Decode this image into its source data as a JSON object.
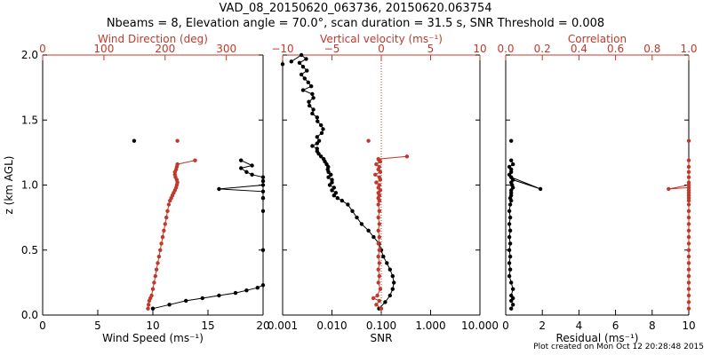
{
  "title": "VAD_08_20150620_063736, 20150620.063754",
  "subtitle": "Nbeams = 8, Elevation angle = 70.0°, scan duration = 31.5 s, SNR Threshold = 0.008",
  "footer": "Plot created on Mon Oct 12 20:28:48 2015",
  "colors": {
    "black": "#000000",
    "red": "#c0392b"
  },
  "y_axis": {
    "label": "z (km AGL)",
    "ticks": [
      "0.0",
      "0.5",
      "1.0",
      "1.5",
      "2.0"
    ],
    "tick_values": [
      0,
      0.5,
      1.0,
      1.5,
      2.0
    ]
  },
  "chart_data": [
    {
      "type": "line",
      "panel": "wind",
      "xlabel": "Wind Speed (ms⁻¹)",
      "xlim": [
        0,
        20
      ],
      "xticks": [
        0,
        5,
        10,
        15,
        20
      ],
      "xticklabels": [
        "0",
        "5",
        "10",
        "15",
        "20"
      ],
      "top_xlabel": "Wind Direction (deg)",
      "top_xlim": [
        0,
        360
      ],
      "top_xticks": [
        0,
        100,
        200,
        300
      ],
      "top_xticklabels": [
        "0",
        "100",
        "200",
        "300"
      ],
      "ylim": [
        0,
        2
      ],
      "series": [
        {
          "color": "black",
          "x": [
            10.0,
            11.5,
            13.0,
            14.5,
            16.0,
            17.5,
            18.5,
            19.5,
            20.0,
            20.0,
            20.0,
            20.0,
            20.0,
            16.0,
            20.0,
            20.0,
            20.0,
            19.0,
            18.5,
            18.0,
            19.0,
            18.0,
            8.3
          ],
          "y": [
            0.05,
            0.08,
            0.11,
            0.13,
            0.15,
            0.17,
            0.19,
            0.21,
            0.23,
            0.5,
            0.8,
            0.9,
            0.95,
            0.97,
            1.0,
            1.03,
            1.06,
            1.08,
            1.1,
            1.13,
            1.15,
            1.19,
            1.34
          ]
        },
        {
          "color": "red",
          "x": [
            172,
            173,
            174,
            176,
            178,
            180,
            182,
            184,
            186,
            188,
            190,
            192,
            194,
            196,
            198,
            200,
            202,
            204,
            206,
            208,
            210,
            212,
            214,
            216,
            218,
            219,
            220,
            219,
            217,
            216,
            216,
            218,
            219,
            220,
            249,
            220
          ],
          "y": [
            0.05,
            0.08,
            0.11,
            0.13,
            0.15,
            0.2,
            0.25,
            0.3,
            0.35,
            0.4,
            0.45,
            0.5,
            0.55,
            0.6,
            0.65,
            0.7,
            0.75,
            0.8,
            0.85,
            0.88,
            0.9,
            0.92,
            0.94,
            0.96,
            0.98,
            1.0,
            1.02,
            1.04,
            1.06,
            1.08,
            1.1,
            1.12,
            1.14,
            1.16,
            1.19,
            1.34
          ]
        }
      ]
    },
    {
      "type": "line",
      "panel": "snr",
      "xlabel": "SNR",
      "xscale": "log",
      "xlim": [
        0.001,
        10
      ],
      "xticks": [
        0.001,
        0.01,
        0.1,
        1,
        10
      ],
      "xticklabels": [
        "0.001",
        "0.010",
        "0.100",
        "1.000",
        "10.000"
      ],
      "top_xlabel": "Vertical velocity (ms⁻¹)",
      "top_xlim": [
        -10,
        10
      ],
      "top_xticks": [
        -10,
        -5,
        0,
        5,
        10
      ],
      "top_xticklabels": [
        "−10",
        "−5",
        "0",
        "5",
        "10"
      ],
      "ylim": [
        0,
        2
      ],
      "reference_line": {
        "axis": "top",
        "value": 0,
        "style": "dotted",
        "color": "red"
      },
      "series": [
        {
          "color": "black",
          "axis": "bottom",
          "x": [
            0.09,
            0.12,
            0.15,
            0.17,
            0.18,
            0.17,
            0.15,
            0.13,
            0.11,
            0.1,
            0.09,
            0.07,
            0.055,
            0.04,
            0.032,
            0.026,
            0.021,
            0.016,
            0.013,
            0.011,
            0.012,
            0.01,
            0.011,
            0.009,
            0.01,
            0.01,
            0.0085,
            0.0095,
            0.0085,
            0.0082,
            0.0084,
            0.0078,
            0.0072,
            0.0068,
            0.006,
            0.0054,
            0.005,
            0.005,
            0.004,
            0.005,
            0.0055,
            0.005,
            0.0062,
            0.0066,
            0.006,
            0.0051,
            0.005,
            0.004,
            0.0042,
            0.0035,
            0.0034,
            0.0042,
            0.004,
            0.0026,
            0.0038,
            0.0033,
            0.0028,
            0.0024,
            0.0031,
            0.0026,
            0.0022,
            0.003,
            0.0024,
            0.0015,
            0.001
          ],
          "y": [
            0.05,
            0.1,
            0.15,
            0.2,
            0.25,
            0.3,
            0.35,
            0.4,
            0.45,
            0.5,
            0.55,
            0.6,
            0.65,
            0.7,
            0.75,
            0.8,
            0.85,
            0.88,
            0.9,
            0.92,
            0.94,
            0.96,
            0.98,
            1.0,
            1.02,
            1.04,
            1.06,
            1.08,
            1.1,
            1.12,
            1.14,
            1.16,
            1.18,
            1.2,
            1.22,
            1.24,
            1.26,
            1.28,
            1.3,
            1.32,
            1.34,
            1.37,
            1.4,
            1.43,
            1.46,
            1.49,
            1.52,
            1.55,
            1.58,
            1.61,
            1.64,
            1.67,
            1.7,
            1.73,
            1.76,
            1.79,
            1.82,
            1.85,
            1.88,
            1.91,
            1.94,
            1.97,
            2.0,
            1.95,
            1.93
          ]
        },
        {
          "color": "red",
          "axis": "top",
          "x": [
            0.0,
            -0.5,
            -0.2,
            -0.8,
            -0.4,
            -0.1,
            -0.3,
            -0.2,
            -0.3,
            -0.2,
            -0.3,
            -0.2,
            -0.3,
            -0.2,
            -0.3,
            -0.2,
            -0.3,
            -0.2,
            -0.3,
            -0.2,
            -0.3,
            -0.2,
            -0.3,
            -0.1,
            -0.3,
            -0.2,
            -0.5,
            -0.1,
            -0.2,
            -0.6,
            -0.1,
            -0.3,
            -0.2,
            -0.5,
            -0.1,
            -0.2,
            -0.3,
            2.6,
            -1.3
          ],
          "y": [
            0.05,
            0.08,
            0.11,
            0.13,
            0.15,
            0.2,
            0.25,
            0.3,
            0.35,
            0.4,
            0.45,
            0.5,
            0.55,
            0.6,
            0.65,
            0.7,
            0.75,
            0.8,
            0.85,
            0.88,
            0.9,
            0.92,
            0.94,
            0.96,
            0.98,
            1.0,
            1.02,
            1.04,
            1.06,
            1.08,
            1.1,
            1.12,
            1.14,
            1.16,
            1.18,
            1.19,
            1.2,
            1.22,
            1.34
          ]
        }
      ]
    },
    {
      "type": "line",
      "panel": "residual",
      "xlabel": "Residual (ms⁻¹)",
      "xlim": [
        0,
        10
      ],
      "xticks": [
        0,
        2,
        4,
        6,
        8,
        10
      ],
      "xticklabels": [
        "0",
        "2",
        "4",
        "6",
        "8",
        "10"
      ],
      "top_xlabel": "Correlation",
      "top_xlim": [
        0,
        1
      ],
      "top_xticks": [
        0,
        0.2,
        0.4,
        0.6,
        0.8,
        1.0
      ],
      "top_xticklabels": [
        "0.0",
        "0.2",
        "0.4",
        "0.6",
        "0.8",
        "1.0"
      ],
      "ylim": [
        0,
        2
      ],
      "series": [
        {
          "color": "black",
          "axis": "bottom",
          "x": [
            0.3,
            0.4,
            0.3,
            0.4,
            0.3,
            0.4,
            0.3,
            0.2,
            0.25,
            0.2,
            0.25,
            0.2,
            0.25,
            0.2,
            0.25,
            0.2,
            0.25,
            0.2,
            0.25,
            0.3,
            0.25,
            0.3,
            0.3,
            0.3,
            0.4,
            0.35,
            0.3,
            0.4,
            1.9,
            0.3,
            0.2,
            0.3,
            0.3,
            0.2,
            0.4,
            0.3,
            0.3
          ],
          "y": [
            0.05,
            0.08,
            0.11,
            0.13,
            0.15,
            0.2,
            0.25,
            0.3,
            0.35,
            0.4,
            0.45,
            0.5,
            0.55,
            0.6,
            0.65,
            0.7,
            0.75,
            0.8,
            0.85,
            0.88,
            0.9,
            0.92,
            0.94,
            0.96,
            0.98,
            1.0,
            1.02,
            1.04,
            0.97,
            1.06,
            1.08,
            1.1,
            1.12,
            1.14,
            1.16,
            1.19,
            1.34
          ]
        },
        {
          "color": "red",
          "axis": "top",
          "x": [
            1.0,
            1.0,
            1.0,
            1.0,
            1.0,
            1.0,
            1.0,
            1.0,
            1.0,
            1.0,
            1.0,
            1.0,
            1.0,
            1.0,
            1.0,
            1.0,
            1.0,
            1.0,
            1.0,
            1.0,
            1.0,
            1.0,
            1.0,
            0.89,
            1.0,
            1.0,
            1.0,
            1.0,
            1.0,
            1.0,
            1.0
          ],
          "y": [
            0.05,
            0.1,
            0.15,
            0.2,
            0.25,
            0.3,
            0.35,
            0.4,
            0.45,
            0.5,
            0.55,
            0.6,
            0.65,
            0.7,
            0.75,
            0.8,
            0.85,
            0.88,
            0.9,
            0.92,
            0.94,
            0.96,
            0.98,
            0.97,
            1.0,
            1.02,
            1.06,
            1.1,
            1.14,
            1.19,
            1.34
          ]
        }
      ]
    }
  ]
}
